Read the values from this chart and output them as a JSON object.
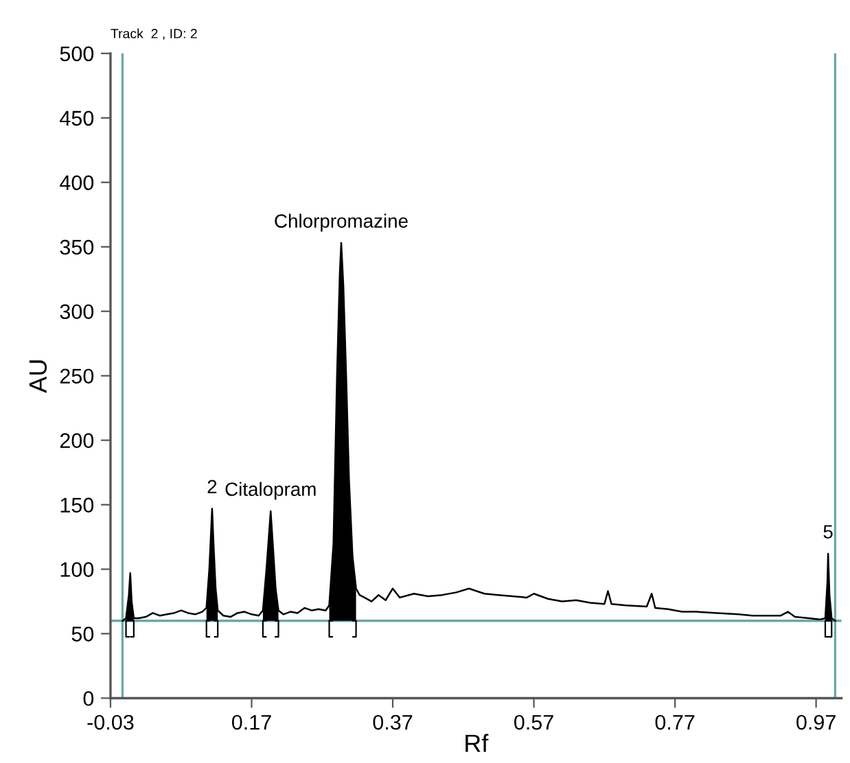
{
  "chart_data": {
    "type": "line",
    "title": "Track  2 , ID: 2",
    "xlabel": "Rf",
    "ylabel": "AU",
    "xlim": [
      -0.03,
      1.006
    ],
    "xticks": [
      -0.03,
      0.17,
      0.37,
      0.57,
      0.77,
      0.97
    ],
    "ylim": [
      0,
      500
    ],
    "yticks": [
      0,
      50,
      100,
      150,
      200,
      250,
      300,
      350,
      400,
      450,
      500
    ],
    "grid": false,
    "legend": false,
    "ref_lines": [
      {
        "axis": "x",
        "value": -0.013,
        "color": "#6aa8a8"
      },
      {
        "axis": "x",
        "value": 0.997,
        "color": "#6aa8a8"
      },
      {
        "axis": "y",
        "value": 60,
        "color": "#6aa8a8"
      }
    ],
    "annotations": [
      {
        "text": "2",
        "x": 0.114,
        "y": 147
      },
      {
        "text": "Citalopram",
        "x": 0.197,
        "y": 145
      },
      {
        "text": "Chlorpromazine",
        "x": 0.297,
        "y": 353
      },
      {
        "text": "5",
        "x": 0.987,
        "y": 112
      }
    ],
    "series": [
      {
        "color": "#000000",
        "x": [
          -0.013,
          -0.008,
          -0.004,
          -0.002,
          0.0,
          0.003,
          0.01,
          0.02,
          0.03,
          0.04,
          0.05,
          0.06,
          0.07,
          0.08,
          0.09,
          0.1,
          0.106,
          0.11,
          0.113,
          0.114,
          0.116,
          0.119,
          0.122,
          0.13,
          0.14,
          0.15,
          0.16,
          0.17,
          0.18,
          0.186,
          0.191,
          0.195,
          0.197,
          0.2,
          0.204,
          0.208,
          0.215,
          0.225,
          0.235,
          0.245,
          0.255,
          0.265,
          0.275,
          0.28,
          0.286,
          0.291,
          0.295,
          0.297,
          0.3,
          0.304,
          0.308,
          0.313,
          0.318,
          0.323,
          0.33,
          0.34,
          0.35,
          0.36,
          0.37,
          0.38,
          0.4,
          0.42,
          0.44,
          0.46,
          0.478,
          0.5,
          0.52,
          0.54,
          0.56,
          0.57,
          0.59,
          0.61,
          0.63,
          0.65,
          0.67,
          0.675,
          0.68,
          0.7,
          0.73,
          0.737,
          0.742,
          0.76,
          0.78,
          0.8,
          0.83,
          0.86,
          0.88,
          0.92,
          0.93,
          0.94,
          0.96,
          0.975,
          0.983,
          0.986,
          0.987,
          0.989,
          0.992,
          0.997
        ],
        "values": [
          60,
          62,
          80,
          97,
          75,
          62,
          62,
          63,
          66,
          64,
          65,
          66,
          68,
          66,
          65,
          67,
          70,
          100,
          135,
          147,
          120,
          85,
          68,
          64,
          63,
          66,
          67,
          65,
          64,
          68,
          100,
          130,
          145,
          120,
          85,
          68,
          65,
          67,
          66,
          70,
          68,
          69,
          68,
          72,
          120,
          250,
          330,
          353,
          320,
          250,
          170,
          110,
          85,
          80,
          78,
          75,
          80,
          76,
          85,
          78,
          81,
          79,
          80,
          82,
          85,
          81,
          80,
          79,
          78,
          81,
          77,
          75,
          76,
          74,
          73,
          83,
          73,
          72,
          71,
          81,
          70,
          69,
          67,
          67,
          66,
          65,
          64,
          64,
          67,
          63,
          62,
          61,
          62,
          90,
          112,
          80,
          62,
          60
        ]
      },
      {
        "type": "area",
        "color": "#000000",
        "x": [
          -0.008,
          -0.004,
          -0.002,
          0.0,
          0.003
        ],
        "values": [
          62,
          80,
          97,
          75,
          62
        ]
      },
      {
        "type": "area",
        "color": "#000000",
        "x": [
          0.106,
          0.11,
          0.113,
          0.114,
          0.116,
          0.119,
          0.122
        ],
        "values": [
          70,
          100,
          135,
          147,
          120,
          85,
          68
        ]
      },
      {
        "type": "area",
        "color": "#000000",
        "x": [
          0.186,
          0.191,
          0.195,
          0.197,
          0.2,
          0.204,
          0.208
        ],
        "values": [
          68,
          100,
          130,
          145,
          120,
          85,
          68
        ]
      },
      {
        "type": "area",
        "color": "#000000",
        "x": [
          0.28,
          0.286,
          0.291,
          0.295,
          0.297,
          0.3,
          0.304,
          0.308,
          0.313,
          0.318
        ],
        "values": [
          72,
          120,
          250,
          330,
          353,
          320,
          250,
          170,
          110,
          85
        ]
      },
      {
        "type": "area",
        "color": "#000000",
        "x": [
          0.983,
          0.986,
          0.987,
          0.989,
          0.992
        ],
        "values": [
          62,
          90,
          112,
          80,
          62
        ]
      }
    ]
  }
}
